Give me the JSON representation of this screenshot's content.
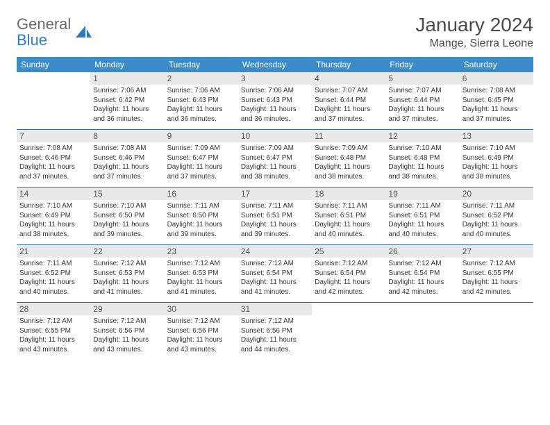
{
  "logo": {
    "word1": "General",
    "word2": "Blue"
  },
  "title": "January 2024",
  "location": "Mange, Sierra Leone",
  "colors": {
    "header_bg": "#3b8bc9",
    "header_text": "#ffffff",
    "daynum_bg": "#e9e9e9",
    "row_border": "#2f6fa3",
    "logo_gray": "#6a6a6a",
    "logo_blue": "#2f7bbf"
  },
  "weekdays": [
    "Sunday",
    "Monday",
    "Tuesday",
    "Wednesday",
    "Thursday",
    "Friday",
    "Saturday"
  ],
  "weeks": [
    [
      {
        "n": "",
        "lines": []
      },
      {
        "n": "1",
        "lines": [
          "Sunrise: 7:06 AM",
          "Sunset: 6:42 PM",
          "Daylight: 11 hours and 36 minutes."
        ]
      },
      {
        "n": "2",
        "lines": [
          "Sunrise: 7:06 AM",
          "Sunset: 6:43 PM",
          "Daylight: 11 hours and 36 minutes."
        ]
      },
      {
        "n": "3",
        "lines": [
          "Sunrise: 7:06 AM",
          "Sunset: 6:43 PM",
          "Daylight: 11 hours and 36 minutes."
        ]
      },
      {
        "n": "4",
        "lines": [
          "Sunrise: 7:07 AM",
          "Sunset: 6:44 PM",
          "Daylight: 11 hours and 37 minutes."
        ]
      },
      {
        "n": "5",
        "lines": [
          "Sunrise: 7:07 AM",
          "Sunset: 6:44 PM",
          "Daylight: 11 hours and 37 minutes."
        ]
      },
      {
        "n": "6",
        "lines": [
          "Sunrise: 7:08 AM",
          "Sunset: 6:45 PM",
          "Daylight: 11 hours and 37 minutes."
        ]
      }
    ],
    [
      {
        "n": "7",
        "lines": [
          "Sunrise: 7:08 AM",
          "Sunset: 6:46 PM",
          "Daylight: 11 hours and 37 minutes."
        ]
      },
      {
        "n": "8",
        "lines": [
          "Sunrise: 7:08 AM",
          "Sunset: 6:46 PM",
          "Daylight: 11 hours and 37 minutes."
        ]
      },
      {
        "n": "9",
        "lines": [
          "Sunrise: 7:09 AM",
          "Sunset: 6:47 PM",
          "Daylight: 11 hours and 37 minutes."
        ]
      },
      {
        "n": "10",
        "lines": [
          "Sunrise: 7:09 AM",
          "Sunset: 6:47 PM",
          "Daylight: 11 hours and 38 minutes."
        ]
      },
      {
        "n": "11",
        "lines": [
          "Sunrise: 7:09 AM",
          "Sunset: 6:48 PM",
          "Daylight: 11 hours and 38 minutes."
        ]
      },
      {
        "n": "12",
        "lines": [
          "Sunrise: 7:10 AM",
          "Sunset: 6:48 PM",
          "Daylight: 11 hours and 38 minutes."
        ]
      },
      {
        "n": "13",
        "lines": [
          "Sunrise: 7:10 AM",
          "Sunset: 6:49 PM",
          "Daylight: 11 hours and 38 minutes."
        ]
      }
    ],
    [
      {
        "n": "14",
        "lines": [
          "Sunrise: 7:10 AM",
          "Sunset: 6:49 PM",
          "Daylight: 11 hours and 38 minutes."
        ]
      },
      {
        "n": "15",
        "lines": [
          "Sunrise: 7:10 AM",
          "Sunset: 6:50 PM",
          "Daylight: 11 hours and 39 minutes."
        ]
      },
      {
        "n": "16",
        "lines": [
          "Sunrise: 7:11 AM",
          "Sunset: 6:50 PM",
          "Daylight: 11 hours and 39 minutes."
        ]
      },
      {
        "n": "17",
        "lines": [
          "Sunrise: 7:11 AM",
          "Sunset: 6:51 PM",
          "Daylight: 11 hours and 39 minutes."
        ]
      },
      {
        "n": "18",
        "lines": [
          "Sunrise: 7:11 AM",
          "Sunset: 6:51 PM",
          "Daylight: 11 hours and 40 minutes."
        ]
      },
      {
        "n": "19",
        "lines": [
          "Sunrise: 7:11 AM",
          "Sunset: 6:51 PM",
          "Daylight: 11 hours and 40 minutes."
        ]
      },
      {
        "n": "20",
        "lines": [
          "Sunrise: 7:11 AM",
          "Sunset: 6:52 PM",
          "Daylight: 11 hours and 40 minutes."
        ]
      }
    ],
    [
      {
        "n": "21",
        "lines": [
          "Sunrise: 7:11 AM",
          "Sunset: 6:52 PM",
          "Daylight: 11 hours and 40 minutes."
        ]
      },
      {
        "n": "22",
        "lines": [
          "Sunrise: 7:12 AM",
          "Sunset: 6:53 PM",
          "Daylight: 11 hours and 41 minutes."
        ]
      },
      {
        "n": "23",
        "lines": [
          "Sunrise: 7:12 AM",
          "Sunset: 6:53 PM",
          "Daylight: 11 hours and 41 minutes."
        ]
      },
      {
        "n": "24",
        "lines": [
          "Sunrise: 7:12 AM",
          "Sunset: 6:54 PM",
          "Daylight: 11 hours and 41 minutes."
        ]
      },
      {
        "n": "25",
        "lines": [
          "Sunrise: 7:12 AM",
          "Sunset: 6:54 PM",
          "Daylight: 11 hours and 42 minutes."
        ]
      },
      {
        "n": "26",
        "lines": [
          "Sunrise: 7:12 AM",
          "Sunset: 6:54 PM",
          "Daylight: 11 hours and 42 minutes."
        ]
      },
      {
        "n": "27",
        "lines": [
          "Sunrise: 7:12 AM",
          "Sunset: 6:55 PM",
          "Daylight: 11 hours and 42 minutes."
        ]
      }
    ],
    [
      {
        "n": "28",
        "lines": [
          "Sunrise: 7:12 AM",
          "Sunset: 6:55 PM",
          "Daylight: 11 hours and 43 minutes."
        ]
      },
      {
        "n": "29",
        "lines": [
          "Sunrise: 7:12 AM",
          "Sunset: 6:56 PM",
          "Daylight: 11 hours and 43 minutes."
        ]
      },
      {
        "n": "30",
        "lines": [
          "Sunrise: 7:12 AM",
          "Sunset: 6:56 PM",
          "Daylight: 11 hours and 43 minutes."
        ]
      },
      {
        "n": "31",
        "lines": [
          "Sunrise: 7:12 AM",
          "Sunset: 6:56 PM",
          "Daylight: 11 hours and 44 minutes."
        ]
      },
      {
        "n": "",
        "lines": []
      },
      {
        "n": "",
        "lines": []
      },
      {
        "n": "",
        "lines": []
      }
    ]
  ]
}
